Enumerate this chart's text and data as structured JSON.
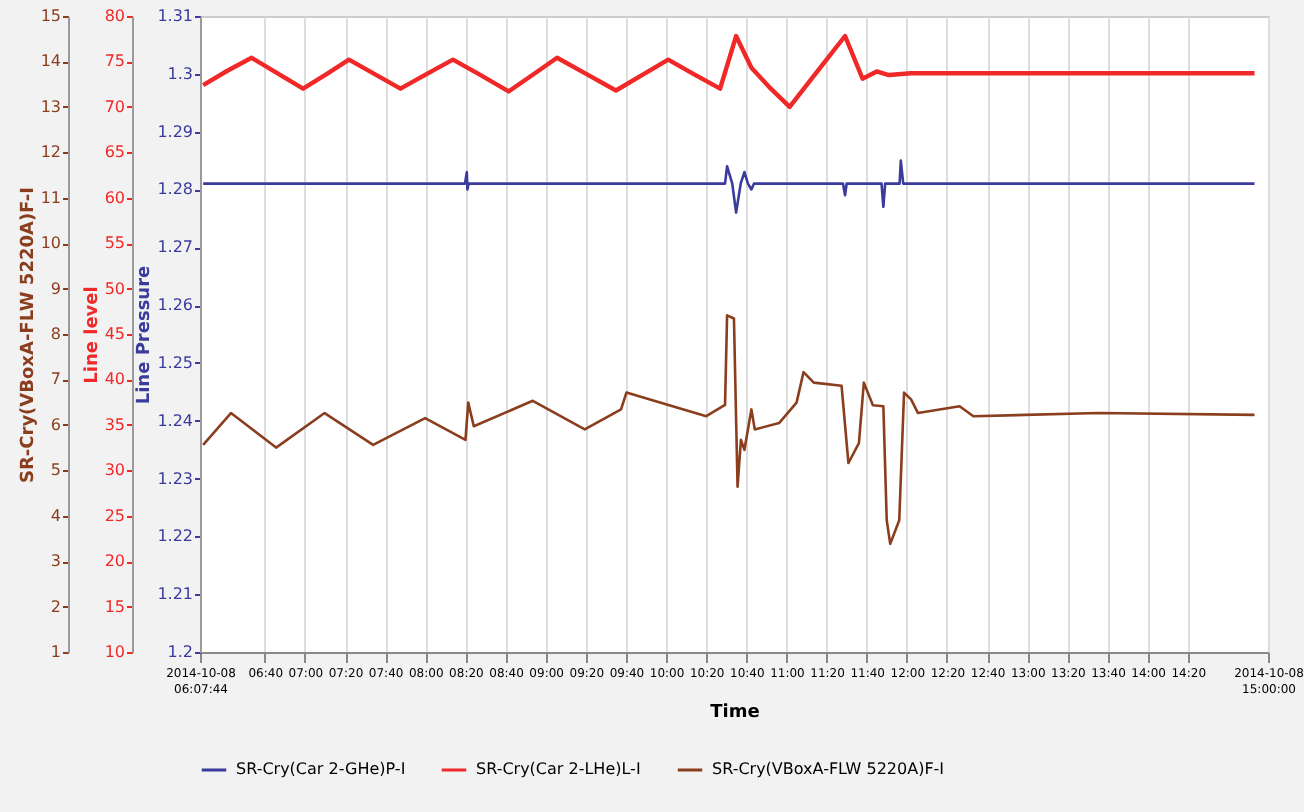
{
  "chart_data": {
    "type": "line",
    "xlabel": "Time",
    "ylabel": "SR-Cry(VBoxA-FLW 5220A)F-I",
    "y2label": "Line level",
    "y3label": "Line Pressure",
    "xlim": [
      6.12889,
      15
    ],
    "xticks": [
      {
        "value": 6.12889,
        "label": "2014-10-08\n06:07:44"
      },
      {
        "value": 6.66667,
        "label": "06:40"
      },
      {
        "value": 7,
        "label": "07:00"
      },
      {
        "value": 7.33333,
        "label": "07:20"
      },
      {
        "value": 7.66667,
        "label": "07:40"
      },
      {
        "value": 8,
        "label": "08:00"
      },
      {
        "value": 8.33333,
        "label": "08:20"
      },
      {
        "value": 8.66667,
        "label": "08:40"
      },
      {
        "value": 9,
        "label": "09:00"
      },
      {
        "value": 9.33333,
        "label": "09:20"
      },
      {
        "value": 9.66667,
        "label": "09:40"
      },
      {
        "value": 10,
        "label": "10:00"
      },
      {
        "value": 10.33333,
        "label": "10:20"
      },
      {
        "value": 10.66667,
        "label": "10:40"
      },
      {
        "value": 11,
        "label": "11:00"
      },
      {
        "value": 11.33333,
        "label": "11:20"
      },
      {
        "value": 11.66667,
        "label": "11:40"
      },
      {
        "value": 12,
        "label": "12:00"
      },
      {
        "value": 12.33333,
        "label": "12:20"
      },
      {
        "value": 12.66667,
        "label": "12:40"
      },
      {
        "value": 13,
        "label": "13:00"
      },
      {
        "value": 13.33333,
        "label": "13:20"
      },
      {
        "value": 13.66667,
        "label": "13:40"
      },
      {
        "value": 14,
        "label": "14:00"
      },
      {
        "value": 14.33333,
        "label": "14:20"
      },
      {
        "value": 15,
        "label": "2014-10-08\n15:00:00"
      }
    ],
    "ylim": [
      1,
      15
    ],
    "yticks": [
      1,
      2,
      3,
      4,
      5,
      6,
      7,
      8,
      9,
      10,
      11,
      12,
      13,
      14,
      15
    ],
    "y2lim": [
      10,
      80
    ],
    "y2ticks": [
      10,
      15,
      20,
      25,
      30,
      35,
      40,
      45,
      50,
      55,
      60,
      65,
      70,
      75,
      80
    ],
    "y3lim": [
      1.2,
      1.31
    ],
    "y3ticks": [
      1.2,
      1.21,
      1.22,
      1.23,
      1.24,
      1.25,
      1.26,
      1.27,
      1.28,
      1.29,
      1.3,
      1.31
    ],
    "grid": "x",
    "legend": "bottom",
    "line_style": "solid",
    "series": [
      {
        "name": "SR-Cry(Car 2-GHe)P-I",
        "color": "#3b3b9e",
        "axis": "y3",
        "x": [
          6.155,
          8.33,
          8.345,
          8.35,
          8.36,
          10.49,
          10.507,
          10.55,
          10.582,
          10.62,
          10.651,
          10.68,
          10.709,
          10.73,
          11.47,
          11.487,
          11.5,
          11.79,
          11.805,
          11.82,
          11.94,
          11.95,
          11.97,
          14.888
        ],
        "values": [
          1.281,
          1.281,
          1.283,
          1.28,
          1.281,
          1.281,
          1.284,
          1.281,
          1.276,
          1.281,
          1.283,
          1.281,
          1.28,
          1.281,
          1.281,
          1.279,
          1.281,
          1.281,
          1.277,
          1.281,
          1.281,
          1.285,
          1.281,
          1.281
        ]
      },
      {
        "name": "SR-Cry(Car 2-LHe)L-I",
        "color": "#f02828",
        "axis": "y2",
        "x": [
          6.155,
          6.36,
          6.558,
          6.77,
          6.985,
          7.18,
          7.366,
          7.58,
          7.794,
          8.01,
          8.23,
          8.46,
          8.692,
          8.89,
          9.095,
          9.34,
          9.584,
          9.8,
          10.018,
          10.23,
          10.449,
          10.582,
          10.709,
          10.87,
          11.027,
          11.25,
          11.487,
          11.632,
          11.75,
          11.85,
          12.035,
          14.888
        ],
        "values": [
          72.4,
          74.0,
          75.4,
          73.7,
          72.0,
          73.6,
          75.2,
          73.6,
          72.0,
          73.6,
          75.2,
          73.5,
          71.7,
          73.5,
          75.4,
          73.6,
          71.8,
          73.5,
          75.2,
          73.6,
          72.0,
          77.8,
          74.3,
          72.0,
          70.0,
          73.8,
          77.8,
          73.1,
          73.9,
          73.5,
          73.7,
          73.7
        ]
      },
      {
        "name": "SR-Cry(VBoxA-FLW 5220A)F-I",
        "color": "#8b3e1e",
        "x": [
          6.155,
          6.386,
          6.761,
          7.164,
          7.567,
          7.999,
          8.334,
          8.357,
          8.403,
          8.893,
          9.325,
          9.626,
          9.671,
          10.334,
          10.49,
          10.507,
          10.564,
          10.594,
          10.622,
          10.651,
          10.709,
          10.737,
          10.939,
          11.084,
          11.142,
          11.227,
          11.458,
          11.515,
          11.602,
          11.643,
          11.718,
          11.805,
          11.833,
          11.862,
          11.937,
          11.977,
          12.035,
          12.093,
          12.438,
          12.553,
          13.591,
          14.888
        ],
        "values": [
          5.56,
          6.26,
          5.5,
          6.26,
          5.56,
          6.15,
          5.67,
          6.49,
          5.97,
          6.53,
          5.9,
          6.34,
          6.71,
          6.19,
          6.44,
          8.41,
          8.34,
          4.64,
          5.67,
          5.45,
          6.34,
          5.9,
          6.04,
          6.49,
          7.16,
          6.93,
          6.86,
          5.16,
          5.6,
          6.93,
          6.43,
          6.41,
          3.9,
          3.38,
          3.9,
          6.71,
          6.56,
          6.26,
          6.41,
          6.19,
          6.26,
          6.22
        ]
      }
    ]
  }
}
